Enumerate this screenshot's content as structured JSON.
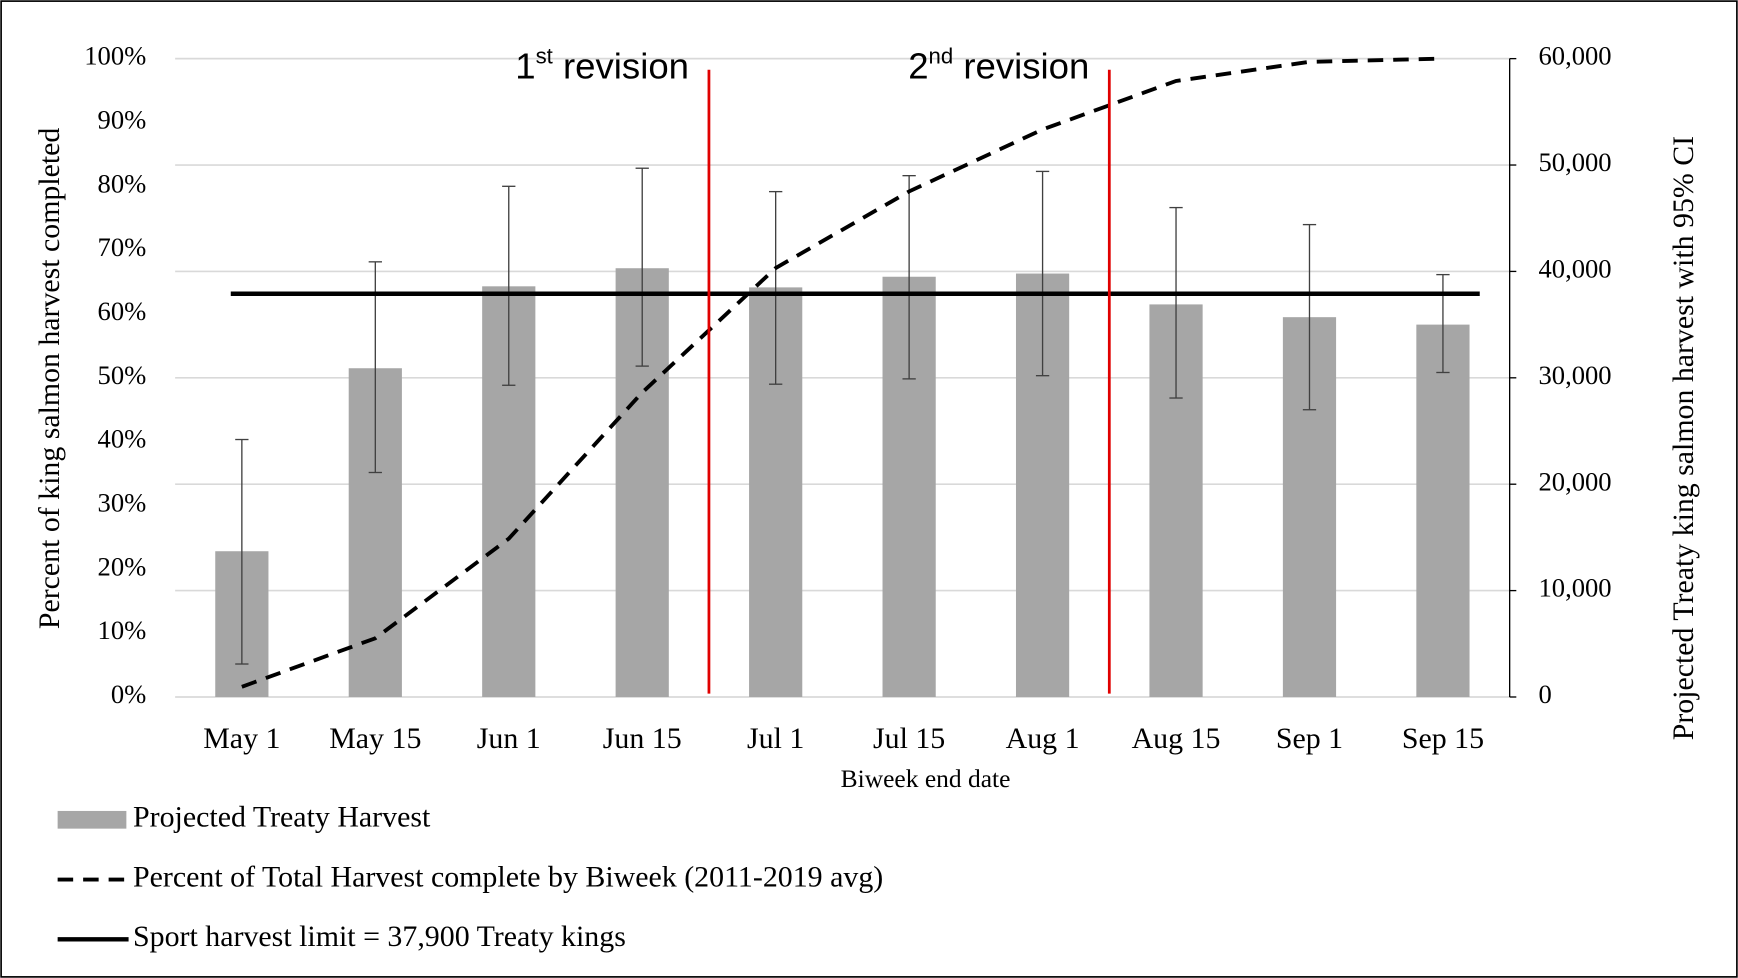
{
  "chart_data": {
    "type": "bar",
    "x_label": "Biweek end date",
    "y_label": "Percent of king salmon harvest completed",
    "y2_label": "Projected Treaty king salmon harvest with 95% CI",
    "categories": [
      "May 1",
      "May 15",
      "Jun 1",
      "Jun 15",
      "Jul 1",
      "Jul 15",
      "Aug 1",
      "Aug 15",
      "Sep 1",
      "Sep 15"
    ],
    "series": [
      {
        "name": "Projected Treaty Harvest",
        "type": "bar",
        "axis": "y2",
        "color": "#a6a6a6",
        "values": [
          13700,
          30900,
          38600,
          40300,
          38500,
          39500,
          39800,
          36900,
          35700,
          35000
        ],
        "ci_low": [
          3100,
          21100,
          29300,
          31100,
          29400,
          29900,
          30200,
          28100,
          27000,
          30500
        ],
        "ci_high": [
          24200,
          40900,
          48000,
          49700,
          47500,
          49000,
          49400,
          46000,
          44400,
          39700
        ]
      },
      {
        "name": "Percent of Total Harvest complete by Biweek (2011-2019 avg)",
        "type": "line",
        "style": "dashed",
        "color": "#000000",
        "values": [
          1.6,
          9.2,
          24.8,
          47.7,
          67.2,
          79.2,
          88.9,
          96.5,
          99.5,
          100
        ]
      }
    ],
    "reference_lines": [
      {
        "name": "Sport harvest limit = 37,900 Treaty kings",
        "value": 37900,
        "axis": "y2",
        "color": "#000000"
      }
    ],
    "annotations": [
      {
        "number": "1",
        "superscript": "st",
        "text": " revision",
        "between": [
          "Jun 15",
          "Jul 1"
        ],
        "color": "#e00000"
      },
      {
        "number": "2",
        "superscript": "nd",
        "text": " revision",
        "between": [
          "Aug 1",
          "Aug 15"
        ],
        "color": "#e00000"
      }
    ],
    "ylim": [
      0,
      100
    ],
    "yticks": [
      {
        "value": 0,
        "label": "0%"
      },
      {
        "value": 10,
        "label": "10%"
      },
      {
        "value": 20,
        "label": "20%"
      },
      {
        "value": 30,
        "label": "30%"
      },
      {
        "value": 40,
        "label": "40%"
      },
      {
        "value": 50,
        "label": "50%"
      },
      {
        "value": 60,
        "label": "60%"
      },
      {
        "value": 70,
        "label": "70%"
      },
      {
        "value": 80,
        "label": "80%"
      },
      {
        "value": 90,
        "label": "90%"
      },
      {
        "value": 100,
        "label": "100%"
      }
    ],
    "y2lim": [
      0,
      60000
    ],
    "y2ticks": [
      0,
      {
        "value": 10000,
        "label": "10,000"
      },
      {
        "value": 20000,
        "label": "20,000"
      },
      {
        "value": 30000,
        "label": "30,000"
      },
      {
        "value": 40000,
        "label": "40,000"
      },
      {
        "value": 50000,
        "label": "50,000"
      },
      {
        "value": 60000,
        "label": "60,000"
      }
    ],
    "grid": true
  }
}
